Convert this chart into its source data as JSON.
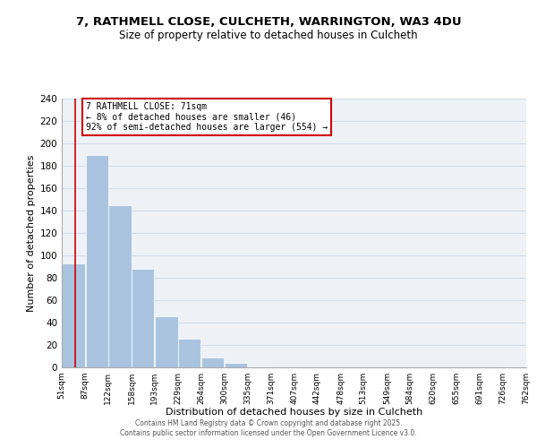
{
  "title1": "7, RATHMELL CLOSE, CULCHETH, WARRINGTON, WA3 4DU",
  "title2": "Size of property relative to detached houses in Culcheth",
  "xlabel": "Distribution of detached houses by size in Culcheth",
  "ylabel": "Number of detached properties",
  "bar_left_edges": [
    51,
    87,
    122,
    158,
    193,
    229,
    264,
    300,
    335,
    371,
    407,
    442,
    478,
    513,
    549,
    584,
    620,
    655,
    691,
    726
  ],
  "bar_widths": [
    36,
    35,
    36,
    35,
    36,
    35,
    36,
    35,
    36,
    36,
    35,
    36,
    35,
    36,
    35,
    36,
    35,
    36,
    35,
    36
  ],
  "bar_heights": [
    93,
    190,
    145,
    88,
    46,
    26,
    9,
    4,
    1,
    0,
    0,
    0,
    0,
    0,
    0,
    0,
    0,
    0,
    0,
    1
  ],
  "bar_color": "#aac4e0",
  "bar_edge_color": "#ffffff",
  "x_tick_labels": [
    "51sqm",
    "87sqm",
    "122sqm",
    "158sqm",
    "193sqm",
    "229sqm",
    "264sqm",
    "300sqm",
    "335sqm",
    "371sqm",
    "407sqm",
    "442sqm",
    "478sqm",
    "513sqm",
    "549sqm",
    "584sqm",
    "620sqm",
    "655sqm",
    "691sqm",
    "726sqm",
    "762sqm"
  ],
  "x_tick_positions": [
    51,
    87,
    122,
    158,
    193,
    229,
    264,
    300,
    335,
    371,
    407,
    442,
    478,
    513,
    549,
    584,
    620,
    655,
    691,
    726,
    762
  ],
  "ylim": [
    0,
    240
  ],
  "xlim": [
    51,
    762
  ],
  "yticks": [
    0,
    20,
    40,
    60,
    80,
    100,
    120,
    140,
    160,
    180,
    200,
    220,
    240
  ],
  "red_line_x": 71,
  "annotation_title": "7 RATHMELL CLOSE: 71sqm",
  "annotation_line1": "← 8% of detached houses are smaller (46)",
  "annotation_line2": "92% of semi-detached houses are larger (554) →",
  "annotation_box_color": "#ffffff",
  "annotation_box_edge": "#cc0000",
  "grid_color": "#d0dce8",
  "bg_color": "#eef2f7",
  "footer1": "Contains HM Land Registry data © Crown copyright and database right 2025.",
  "footer2": "Contains public sector information licensed under the Open Government Licence v3.0."
}
